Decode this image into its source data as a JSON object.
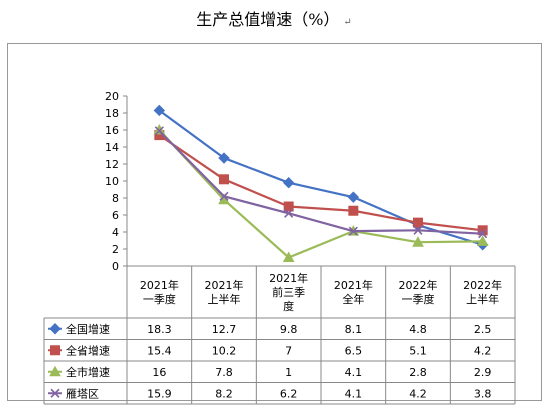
{
  "title": "生产总值增速（%）",
  "title_mark": "↵",
  "chart_data": {
    "type": "line",
    "categories": [
      "2021年\n一季度",
      "2021年\n上半年",
      "2021年\n前三季\n度",
      "2021年\n全年",
      "2022年\n一季度",
      "2022年\n上半年"
    ],
    "y_ticks": [
      "0",
      "2",
      "4",
      "6",
      "8",
      "10",
      "12",
      "14",
      "16",
      "18",
      "20"
    ],
    "ylim": [
      0,
      20
    ],
    "grid": false,
    "legend": "data-table",
    "series": [
      {
        "name": "全国增速",
        "values": [
          18.3,
          12.7,
          9.8,
          8.1,
          4.8,
          2.5
        ],
        "labels": [
          "18.3",
          "12.7",
          "9.8",
          "8.1",
          "4.8",
          "2.5"
        ],
        "color": "#4472C4",
        "marker": "diamond"
      },
      {
        "name": "全省增速",
        "values": [
          15.4,
          10.2,
          7,
          6.5,
          5.1,
          4.2
        ],
        "labels": [
          "15.4",
          "10.2",
          "7",
          "6.5",
          "5.1",
          "4.2"
        ],
        "color": "#C0504D",
        "marker": "square"
      },
      {
        "name": "全市增速",
        "values": [
          16,
          7.8,
          1,
          4.1,
          2.8,
          2.9
        ],
        "labels": [
          "16",
          "7.8",
          "1",
          "4.1",
          "2.8",
          "2.9"
        ],
        "color": "#9BBB59",
        "marker": "triangle"
      },
      {
        "name": "雁塔区",
        "values": [
          15.9,
          8.2,
          6.2,
          4.1,
          4.2,
          3.8
        ],
        "labels": [
          "15.9",
          "8.2",
          "6.2",
          "4.1",
          "4.2",
          "3.8"
        ],
        "color": "#8064A2",
        "marker": "x"
      }
    ]
  }
}
